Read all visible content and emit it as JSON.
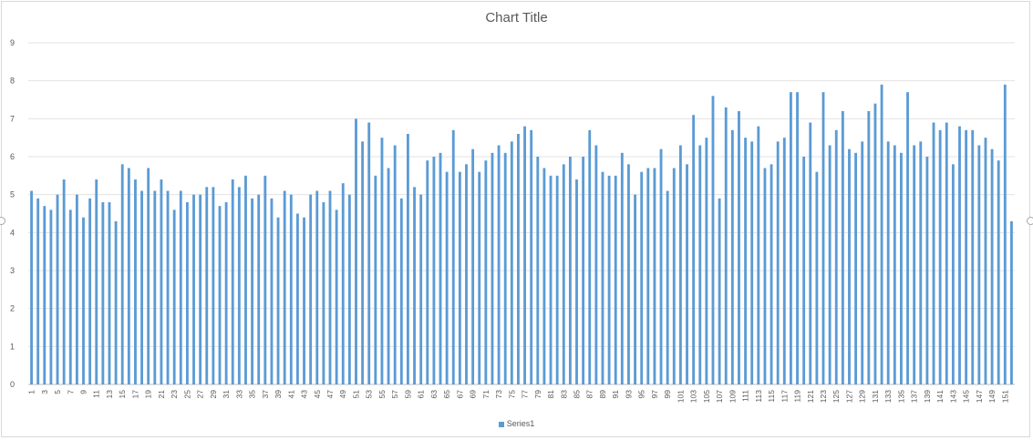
{
  "chart_data": {
    "type": "bar",
    "title": "Chart Title",
    "xlabel": "",
    "ylabel": "",
    "ylim": [
      0,
      9
    ],
    "y_ticks": [
      0,
      1,
      2,
      3,
      4,
      5,
      6,
      7,
      8,
      9
    ],
    "grid": true,
    "legend_position": "bottom",
    "x_tick_labels_shown": "odd categories only (1, 3, 5, ... 151), rotated vertical",
    "categories": [
      1,
      2,
      3,
      4,
      5,
      6,
      7,
      8,
      9,
      10,
      11,
      12,
      13,
      14,
      15,
      16,
      17,
      18,
      19,
      20,
      21,
      22,
      23,
      24,
      25,
      26,
      27,
      28,
      29,
      30,
      31,
      32,
      33,
      34,
      35,
      36,
      37,
      38,
      39,
      40,
      41,
      42,
      43,
      44,
      45,
      46,
      47,
      48,
      49,
      50,
      51,
      52,
      53,
      54,
      55,
      56,
      57,
      58,
      59,
      60,
      61,
      62,
      63,
      64,
      65,
      66,
      67,
      68,
      69,
      70,
      71,
      72,
      73,
      74,
      75,
      76,
      77,
      78,
      79,
      80,
      81,
      82,
      83,
      84,
      85,
      86,
      87,
      88,
      89,
      90,
      91,
      92,
      93,
      94,
      95,
      96,
      97,
      98,
      99,
      100,
      101,
      102,
      103,
      104,
      105,
      106,
      107,
      108,
      109,
      110,
      111,
      112,
      113,
      114,
      115,
      116,
      117,
      118,
      119,
      120,
      121,
      122,
      123,
      124,
      125,
      126,
      127,
      128,
      129,
      130,
      131,
      132,
      133,
      134,
      135,
      136,
      137,
      138,
      139,
      140,
      141,
      142,
      143,
      144,
      145,
      146,
      147,
      148,
      149,
      150,
      151,
      152
    ],
    "series": [
      {
        "name": "Series1",
        "color": "#5b9bd5",
        "values": [
          5.1,
          4.9,
          4.7,
          4.6,
          5.0,
          5.4,
          4.6,
          5.0,
          4.4,
          4.9,
          5.4,
          4.8,
          4.8,
          4.3,
          5.8,
          5.7,
          5.4,
          5.1,
          5.7,
          5.1,
          5.4,
          5.1,
          4.6,
          5.1,
          4.8,
          5.0,
          5.0,
          5.2,
          5.2,
          4.7,
          4.8,
          5.4,
          5.2,
          5.5,
          4.9,
          5.0,
          5.5,
          4.9,
          4.4,
          5.1,
          5.0,
          4.5,
          4.4,
          5.0,
          5.1,
          4.8,
          5.1,
          4.6,
          5.3,
          5.0,
          7.0,
          6.4,
          6.9,
          5.5,
          6.5,
          5.7,
          6.3,
          4.9,
          6.6,
          5.2,
          5.0,
          5.9,
          6.0,
          6.1,
          5.6,
          6.7,
          5.6,
          5.8,
          6.2,
          5.6,
          5.9,
          6.1,
          6.3,
          6.1,
          6.4,
          6.6,
          6.8,
          6.7,
          6.0,
          5.7,
          5.5,
          5.5,
          5.8,
          6.0,
          5.4,
          6.0,
          6.7,
          6.3,
          5.6,
          5.5,
          5.5,
          6.1,
          5.8,
          5.0,
          5.6,
          5.7,
          5.7,
          6.2,
          5.1,
          5.7,
          6.3,
          5.8,
          7.1,
          6.3,
          6.5,
          7.6,
          4.9,
          7.3,
          6.7,
          7.2,
          6.5,
          6.4,
          6.8,
          5.7,
          5.8,
          6.4,
          6.5,
          7.7,
          7.7,
          6.0,
          6.9,
          5.6,
          7.7,
          6.3,
          6.7,
          7.2,
          6.2,
          6.1,
          6.4,
          7.2,
          7.4,
          7.9,
          6.4,
          6.3,
          6.1,
          7.7,
          6.3,
          6.4,
          6.0,
          6.9,
          6.7,
          6.9,
          5.8,
          6.8,
          6.7,
          6.7,
          6.3,
          6.5,
          6.2,
          5.9,
          7.9,
          4.3
        ]
      }
    ]
  }
}
